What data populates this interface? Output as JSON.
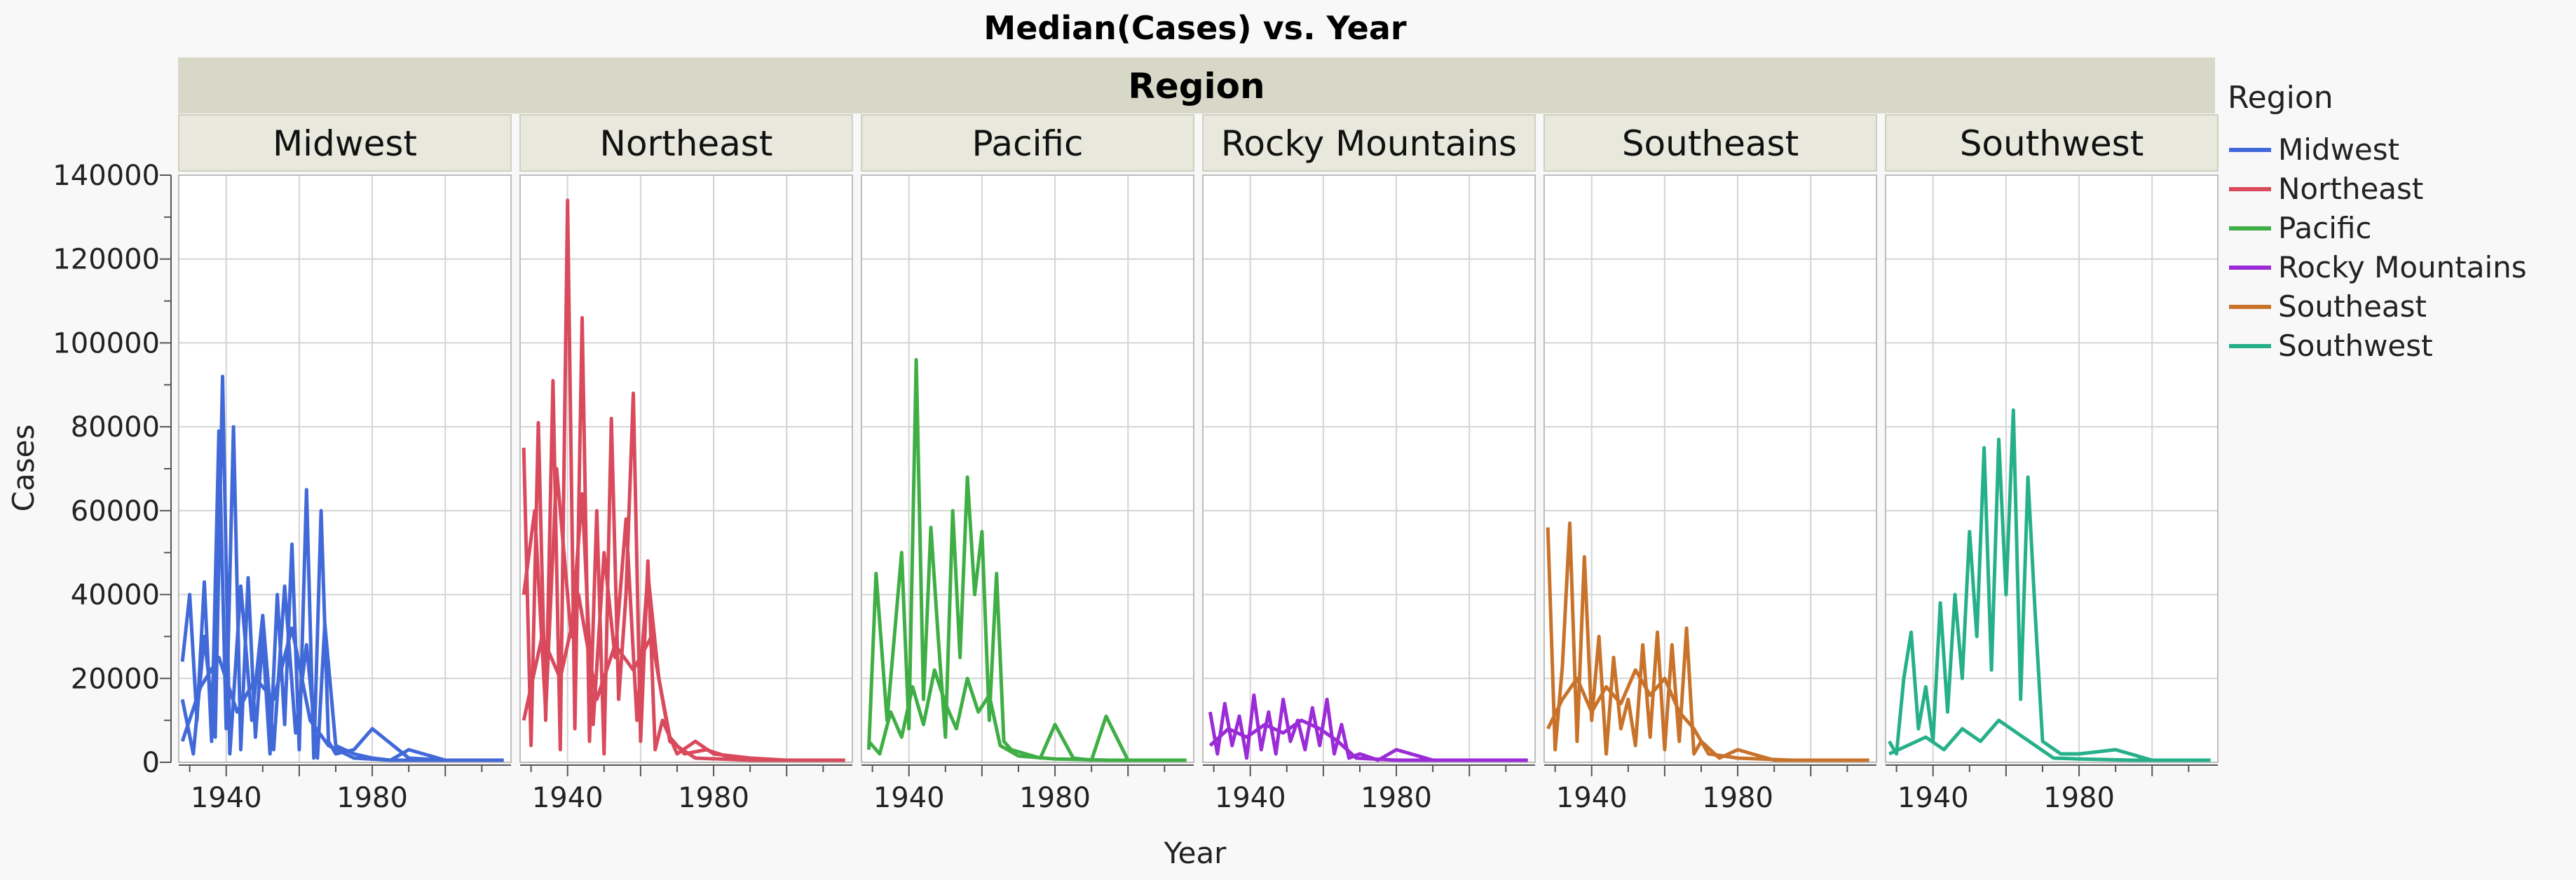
{
  "chart_data": {
    "type": "line",
    "title": "Median(Cases) vs. Year",
    "group_title": "Region",
    "xlabel": "Year",
    "ylabel": "Cases",
    "xlim": [
      1927,
      2018
    ],
    "ylim": [
      0,
      140000
    ],
    "x_ticks": [
      1940,
      1980
    ],
    "y_ticks": [
      0,
      20000,
      40000,
      60000,
      80000,
      100000,
      120000,
      140000
    ],
    "grid": true,
    "legend_title": "Region",
    "legend_position": "right",
    "facets": [
      {
        "name": "Midwest",
        "color": "#4169D8",
        "series": [
          {
            "x": [
              1928,
              1930,
              1932,
              1934,
              1936,
              1938,
              1940,
              1942,
              1944,
              1946,
              1948,
              1950,
              1952,
              1954,
              1956,
              1958,
              1960,
              1962,
              1964,
              1966,
              1968,
              1970,
              1975,
              1980,
              1990,
              2000,
              2010,
              2016
            ],
            "y": [
              24000,
              40000,
              10000,
              43000,
              5000,
              79000,
              8000,
              80000,
              3000,
              44000,
              6000,
              30000,
              2000,
              40000,
              9000,
              52000,
              3000,
              65000,
              1000,
              60000,
              5000,
              2000,
              3000,
              8000,
              1000,
              500,
              500,
              500
            ]
          },
          {
            "x": [
              1928,
              1931,
              1934,
              1937,
              1939,
              1941,
              1944,
              1947,
              1950,
              1953,
              1956,
              1959,
              1962,
              1965,
              1967,
              1970,
              1975,
              1980,
              1985,
              1990,
              2000,
              2016
            ],
            "y": [
              15000,
              2000,
              30000,
              6000,
              92000,
              2000,
              42000,
              10000,
              35000,
              3000,
              42000,
              7000,
              28000,
              1000,
              33000,
              4000,
              2000,
              1000,
              500,
              3000,
              500,
              500
            ]
          },
          {
            "x": [
              1928,
              1933,
              1938,
              1943,
              1948,
              1953,
              1958,
              1963,
              1968,
              1975,
              1985,
              2000,
              2016
            ],
            "y": [
              5000,
              18000,
              25000,
              12000,
              20000,
              15000,
              32000,
              10000,
              4000,
              1000,
              500,
              500,
              500
            ]
          }
        ]
      },
      {
        "name": "Northeast",
        "color": "#D94A5C",
        "series": [
          {
            "x": [
              1928,
              1930,
              1932,
              1934,
              1936,
              1938,
              1940,
              1942,
              1944,
              1946,
              1948,
              1950,
              1952,
              1954,
              1956,
              1958,
              1960,
              1962,
              1964,
              1966,
              1970,
              1975,
              1980,
              1990,
              2000,
              2016
            ],
            "y": [
              75000,
              4000,
              81000,
              10000,
              91000,
              3000,
              134000,
              8000,
              106000,
              5000,
              60000,
              2000,
              82000,
              15000,
              40000,
              88000,
              5000,
              48000,
              3000,
              10000,
              2000,
              5000,
              2000,
              1000,
              500,
              500
            ]
          },
          {
            "x": [
              1928,
              1931,
              1934,
              1937,
              1941,
              1944,
              1947,
              1950,
              1953,
              1956,
              1959,
              1962,
              1965,
              1968,
              1972,
              1978,
              1985,
              1995,
              2010,
              2016
            ],
            "y": [
              40000,
              60000,
              12000,
              70000,
              30000,
              64000,
              9000,
              50000,
              25000,
              58000,
              10000,
              45000,
              20000,
              6000,
              2000,
              3000,
              1000,
              500,
              500,
              500
            ]
          },
          {
            "x": [
              1928,
              1933,
              1938,
              1943,
              1948,
              1953,
              1958,
              1963,
              1968,
              1975,
              1990,
              2016
            ],
            "y": [
              10000,
              30000,
              20000,
              40000,
              15000,
              28000,
              22000,
              30000,
              5000,
              1000,
              500,
              500
            ]
          }
        ]
      },
      {
        "name": "Pacific",
        "color": "#3FAE45",
        "series": [
          {
            "x": [
              1929,
              1931,
              1934,
              1936,
              1938,
              1940,
              1942,
              1944,
              1946,
              1948,
              1950,
              1952,
              1954,
              1956,
              1958,
              1960,
              1962,
              1964,
              1966,
              1968,
              1972,
              1976,
              1980,
              1985,
              1990,
              1994,
              2000,
              2016
            ],
            "y": [
              3000,
              45000,
              10000,
              30000,
              50000,
              8000,
              96000,
              15000,
              56000,
              30000,
              6000,
              60000,
              25000,
              68000,
              40000,
              55000,
              10000,
              45000,
              5000,
              3000,
              2000,
              1000,
              9000,
              1000,
              500,
              11000,
              500,
              500
            ]
          },
          {
            "x": [
              1929,
              1932,
              1935,
              1938,
              1941,
              1944,
              1947,
              1950,
              1953,
              1956,
              1959,
              1962,
              1965,
              1970,
              1980,
              1995,
              2016
            ],
            "y": [
              5000,
              2000,
              12000,
              6000,
              18000,
              9000,
              22000,
              14000,
              8000,
              20000,
              12000,
              16000,
              4000,
              1500,
              800,
              500,
              500
            ]
          }
        ]
      },
      {
        "name": "Rocky Mountains",
        "color": "#9B2BD6",
        "series": [
          {
            "x": [
              1929,
              1931,
              1933,
              1935,
              1937,
              1939,
              1941,
              1943,
              1945,
              1947,
              1949,
              1951,
              1953,
              1955,
              1957,
              1959,
              1961,
              1963,
              1965,
              1967,
              1970,
              1975,
              1980,
              1990,
              2000,
              2016
            ],
            "y": [
              12000,
              2000,
              14000,
              4000,
              11000,
              1000,
              16000,
              3000,
              12000,
              2000,
              15000,
              5000,
              10000,
              3000,
              13000,
              4000,
              15000,
              2000,
              9000,
              1000,
              2000,
              500,
              3000,
              500,
              500,
              500
            ]
          },
          {
            "x": [
              1929,
              1934,
              1939,
              1944,
              1949,
              1954,
              1959,
              1964,
              1969,
              1980,
              2016
            ],
            "y": [
              4000,
              8000,
              6000,
              9000,
              7000,
              10000,
              8000,
              5000,
              1000,
              500,
              500
            ]
          }
        ]
      },
      {
        "name": "Southeast",
        "color": "#C8722A",
        "series": [
          {
            "x": [
              1928,
              1930,
              1932,
              1934,
              1936,
              1938,
              1940,
              1942,
              1944,
              1946,
              1948,
              1950,
              1952,
              1954,
              1956,
              1958,
              1960,
              1962,
              1964,
              1966,
              1968,
              1970,
              1975,
              1980,
              1990,
              2000,
              2016
            ],
            "y": [
              56000,
              3000,
              23000,
              57000,
              5000,
              49000,
              10000,
              30000,
              2000,
              25000,
              8000,
              15000,
              4000,
              28000,
              6000,
              31000,
              3000,
              28000,
              5000,
              32000,
              2000,
              5000,
              1000,
              3000,
              500,
              500,
              500
            ]
          },
          {
            "x": [
              1928,
              1932,
              1936,
              1940,
              1944,
              1948,
              1952,
              1956,
              1960,
              1964,
              1968,
              1972,
              1980,
              1995,
              2016
            ],
            "y": [
              8000,
              15000,
              20000,
              12000,
              18000,
              14000,
              22000,
              16000,
              20000,
              12000,
              8000,
              2000,
              1000,
              500,
              500
            ]
          }
        ]
      },
      {
        "name": "Southwest",
        "color": "#26B08A",
        "series": [
          {
            "x": [
              1928,
              1930,
              1932,
              1934,
              1936,
              1938,
              1940,
              1942,
              1944,
              1946,
              1948,
              1950,
              1952,
              1954,
              1956,
              1958,
              1960,
              1962,
              1964,
              1966,
              1968,
              1970,
              1975,
              1980,
              1990,
              2000,
              2016
            ],
            "y": [
              5000,
              2000,
              20000,
              31000,
              8000,
              18000,
              5000,
              38000,
              12000,
              40000,
              20000,
              55000,
              30000,
              75000,
              22000,
              77000,
              40000,
              84000,
              15000,
              68000,
              35000,
              5000,
              2000,
              2000,
              3000,
              500,
              500
            ]
          },
          {
            "x": [
              1928,
              1933,
              1938,
              1943,
              1948,
              1953,
              1958,
              1963,
              1968,
              1973,
              1980,
              1995,
              2016
            ],
            "y": [
              2000,
              4000,
              6000,
              3000,
              8000,
              5000,
              10000,
              7000,
              4000,
              1000,
              800,
              500,
              500
            ]
          }
        ]
      }
    ]
  }
}
